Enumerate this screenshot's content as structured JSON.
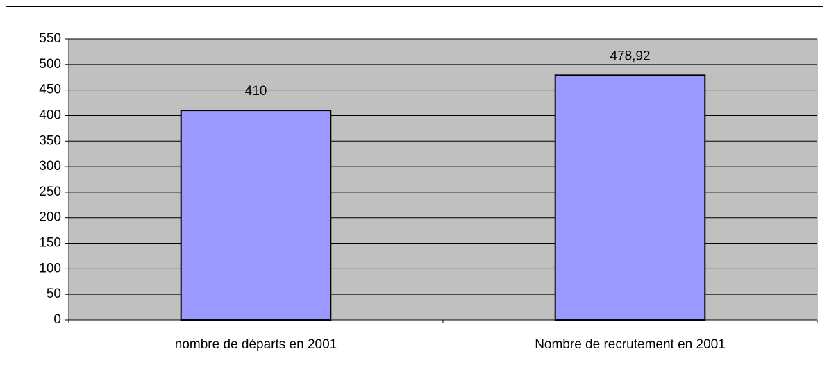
{
  "chart_data": {
    "type": "bar",
    "categories": [
      "nombre de départs en 2001",
      "Nombre de recrutement en 2001"
    ],
    "values": [
      410,
      478.92
    ],
    "value_labels": [
      "410",
      "478,92"
    ],
    "color": "#9999ff",
    "ylim": [
      0,
      550
    ],
    "yticks": [
      0,
      50,
      100,
      150,
      200,
      250,
      300,
      350,
      400,
      450,
      500,
      550
    ],
    "grid": true
  }
}
